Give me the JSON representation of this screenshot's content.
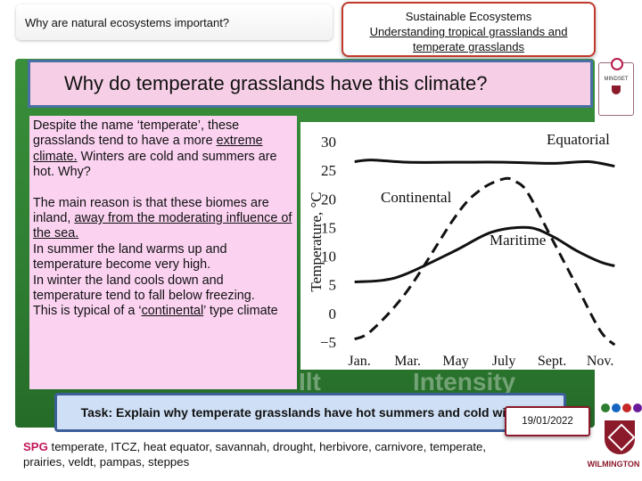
{
  "header": {
    "question": "Why are natural ecosystems important?",
    "unit_title": "Sustainable Ecosystems",
    "lesson_title": "Understanding tropical grasslands and temperate grasslands"
  },
  "slide_title": "Why do temperate grasslands have this climate?",
  "body": {
    "p1_plain": "Despite the name ‘temperate’, these grasslands tend to have a more ",
    "p1_u": "extreme climate.",
    "p1_end": " Winters are cold and summers are hot. Why?",
    "p2_plain": "The main reason is that these biomes are inland, ",
    "p2_u": "away from the moderating influence of the sea.",
    "p3": "In summer the land warms up and temperature become very high.",
    "p4": "In winter the land cools down and temperature tend to fall below freezing.",
    "p5_start": "This is typical of a ‘",
    "p5_u": "continental",
    "p5_end": "’ type climate"
  },
  "task": "Task: Explain why temperate grasslands have hot summers and cold winters.",
  "keywords": {
    "label": "SPG",
    "text": "temperate, ITCZ, heat equator, savannah, drought, herbivore, carnivore, temperate, prairies, veldt, pampas, steppes"
  },
  "date": "19/01/2022",
  "branding": {
    "wilmington": "WILMINGTON",
    "badge_line1": "MINDSET",
    "dot_colors": [
      "#2e7d32",
      "#1565c0",
      "#c62828",
      "#6a1b9a"
    ]
  },
  "background_words": [
    "Ilt",
    "Intensity"
  ],
  "chart_data": {
    "type": "line",
    "ylabel": "Temperature, °C",
    "ylim": [
      -5,
      30
    ],
    "y_ticks": [
      30,
      25,
      20,
      15,
      10,
      5,
      0,
      -5
    ],
    "x_tick_labels": [
      "Jan.",
      "Mar.",
      "May",
      "July",
      "Sept.",
      "Nov."
    ],
    "x_months": [
      1,
      3,
      5,
      7,
      9,
      11
    ],
    "xlim": [
      0.7,
      11.7
    ],
    "series": [
      {
        "name": "Equatorial",
        "style": "solid",
        "x": [
          0.8,
          1.5,
          3,
          5,
          7,
          9,
          10.5,
          11.6
        ],
        "y": [
          26.5,
          26.8,
          26.4,
          26.4,
          26.4,
          26.2,
          26.5,
          25.7
        ]
      },
      {
        "name": "Continental",
        "style": "dashed",
        "x": [
          0.8,
          1.5,
          3,
          5,
          6,
          7,
          7.5,
          8,
          9,
          10,
          11,
          11.6
        ],
        "y": [
          -4.5,
          -3,
          4,
          17,
          21.5,
          23.5,
          23,
          21,
          13,
          5,
          -3,
          -5.5
        ]
      },
      {
        "name": "Maritime",
        "style": "solid",
        "x": [
          0.8,
          2,
          3,
          5,
          6.5,
          8,
          9,
          10,
          11,
          11.6
        ],
        "y": [
          5.5,
          5.8,
          7,
          11,
          14.2,
          15,
          13.5,
          11,
          9,
          8.3
        ]
      }
    ]
  }
}
